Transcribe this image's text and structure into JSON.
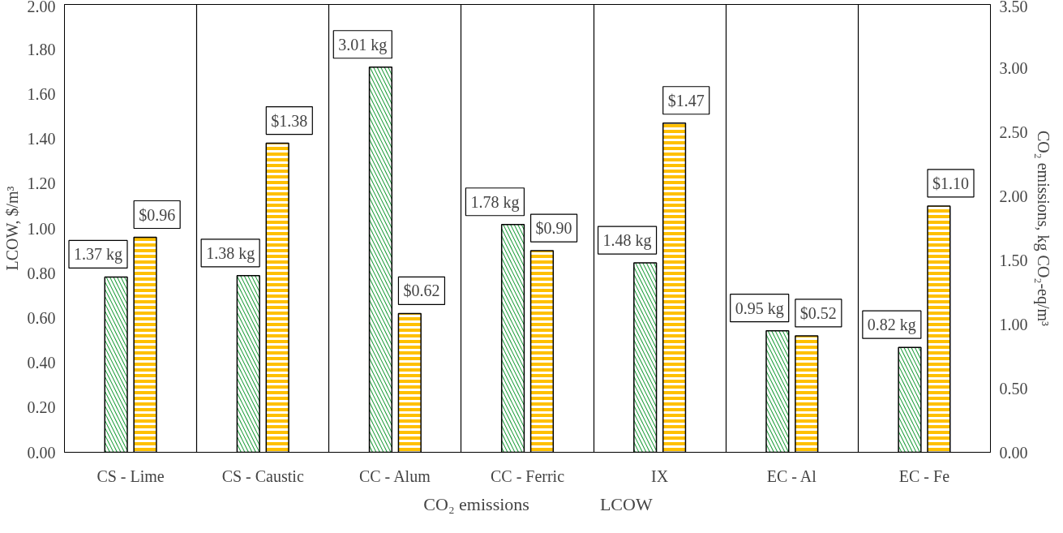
{
  "chart_data": {
    "type": "bar",
    "categories": [
      "CS - Lime",
      "CS - Caustic",
      "CC - Alum",
      "CC - Ferric",
      "IX",
      "EC - Al",
      "EC - Fe"
    ],
    "series": [
      {
        "name": "CO₂ emissions",
        "color": "#1f9e3c",
        "axis": "y2",
        "values": [
          1.37,
          1.38,
          3.01,
          1.78,
          1.48,
          0.95,
          0.82
        ],
        "value_labels": [
          "1.37 kg",
          "1.38 kg",
          "3.01 kg",
          "1.78 kg",
          "1.48 kg",
          "0.95 kg",
          "0.82 kg"
        ]
      },
      {
        "name": "LCOW",
        "color": "#ffc000",
        "values": [
          0.96,
          1.38,
          0.62,
          0.9,
          1.47,
          0.52,
          1.1
        ],
        "value_labels": [
          "$0.96",
          "$1.38",
          "$0.62",
          "$0.90",
          "$1.47",
          "$0.52",
          "$1.10"
        ]
      }
    ],
    "ylabel": "LCOW, $/m³",
    "y2label": "CO₂ emissions, kg CO₂-eq/m³",
    "ylim": [
      0,
      2
    ],
    "yticks": [
      {
        "value": 0,
        "label": "0.00"
      },
      {
        "value": 0.2,
        "label": "0.20"
      },
      {
        "value": 0.4,
        "label": "0.40"
      },
      {
        "value": 0.6,
        "label": "0.60"
      },
      {
        "value": 0.8,
        "label": "0.80"
      },
      {
        "value": 1,
        "label": "1.00"
      },
      {
        "value": 1.2,
        "label": "1.20"
      },
      {
        "value": 1.4,
        "label": "1.40"
      },
      {
        "value": 1.6,
        "label": "1.60"
      },
      {
        "value": 1.8,
        "label": "1.80"
      },
      {
        "value": 2,
        "label": "2.00"
      }
    ],
    "y2lim": [
      0,
      3.5
    ],
    "y2ticks": [
      {
        "value": 0,
        "label": "0.00"
      },
      {
        "value": 0.5,
        "label": "0.50"
      },
      {
        "value": 1,
        "label": "1.00"
      },
      {
        "value": 1.5,
        "label": "1.50"
      },
      {
        "value": 2,
        "label": "2.00"
      },
      {
        "value": 2.5,
        "label": "2.50"
      },
      {
        "value": 3,
        "label": "3.00"
      },
      {
        "value": 3.5,
        "label": "3.50"
      }
    ],
    "grid": "x",
    "legend": "bottom"
  }
}
